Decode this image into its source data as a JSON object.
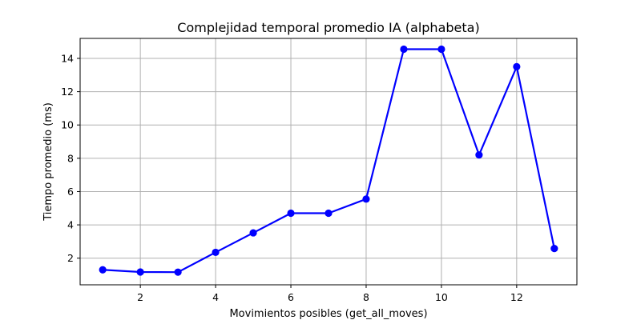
{
  "chart_data": {
    "type": "line",
    "title": "Complejidad temporal promedio IA (alphabeta)",
    "xlabel": "Movimientos posibles (get_all_moves)",
    "ylabel": "Tiempo promedio (ms)",
    "x": [
      1,
      2,
      3,
      4,
      5,
      6,
      7,
      8,
      9,
      10,
      11,
      12,
      13
    ],
    "series": [
      {
        "values": [
          1.3,
          1.17,
          1.16,
          2.35,
          3.52,
          4.7,
          4.7,
          5.55,
          14.55,
          14.55,
          8.2,
          13.5,
          2.58
        ],
        "color": "#0000ff",
        "marker": "circle"
      }
    ],
    "xlim": [
      0.4,
      13.6
    ],
    "ylim": [
      0.4,
      15.2
    ],
    "xticks": [
      2,
      4,
      6,
      8,
      10,
      12
    ],
    "yticks": [
      2,
      4,
      6,
      8,
      10,
      12,
      14
    ],
    "grid": true
  }
}
